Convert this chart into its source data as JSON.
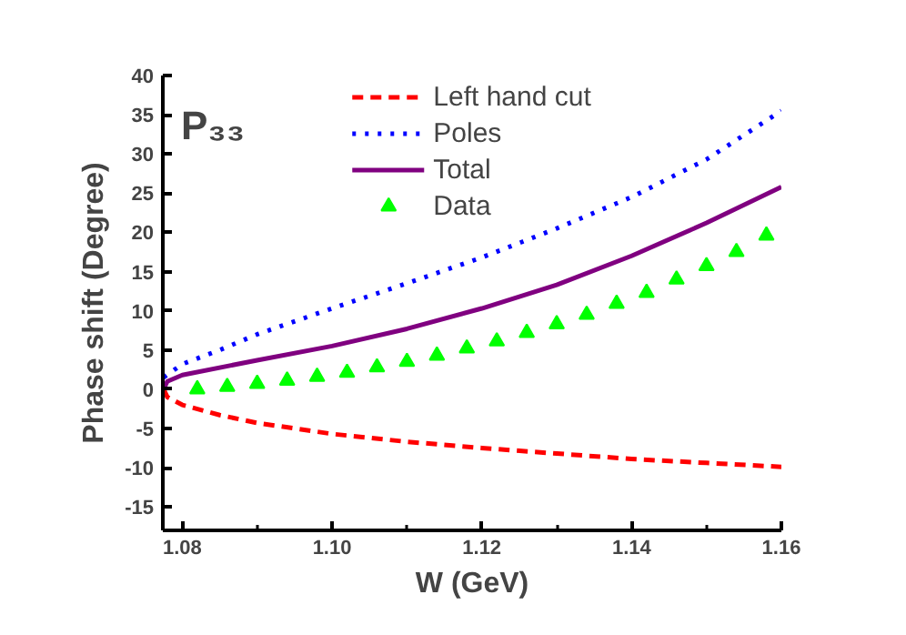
{
  "chart_data": {
    "type": "line",
    "title": "P₃₃",
    "xlabel": "W (GeV)",
    "ylabel": "Phase shift (Degree)",
    "xlim": [
      1.0774,
      1.16
    ],
    "ylim": [
      -18,
      40
    ],
    "xticks": [
      1.08,
      {
        "value": 1.09,
        "label": null
      },
      {
        "value": 1.1,
        "label": "1.10"
      },
      {
        "value": 1.11,
        "label": null
      },
      1.12,
      {
        "value": 1.13,
        "label": null
      },
      1.14,
      {
        "value": 1.15,
        "label": null
      },
      1.16
    ],
    "yticks": [
      -15,
      -10,
      -5,
      0,
      5,
      10,
      15,
      20,
      25,
      30,
      35,
      40
    ],
    "grid": false,
    "legend": "top",
    "series": [
      {
        "name": "Left hand cut",
        "line_style": "dashed",
        "color": "#ff0000",
        "x": [
          1.0775,
          1.078,
          1.08,
          1.085,
          1.09,
          1.1,
          1.11,
          1.12,
          1.13,
          1.14,
          1.15,
          1.16
        ],
        "values": [
          0,
          -1,
          -2,
          -3.3,
          -4.3,
          -5.7,
          -6.7,
          -7.5,
          -8.2,
          -8.9,
          -9.4,
          -9.9
        ]
      },
      {
        "name": "Poles",
        "line_style": "dotted",
        "color": "#0000ff",
        "x": [
          1.0775,
          1.08,
          1.085,
          1.09,
          1.1,
          1.11,
          1.12,
          1.13,
          1.14,
          1.15,
          1.16
        ],
        "values": [
          1.5,
          3.2,
          5,
          7,
          10.3,
          13.5,
          16.8,
          20.5,
          24.5,
          29.3,
          35.5
        ]
      },
      {
        "name": "Total",
        "line_style": "solid",
        "color": "#800080",
        "x": [
          1.0775,
          1.078,
          1.08,
          1.09,
          1.1,
          1.11,
          1.12,
          1.13,
          1.14,
          1.15,
          1.16
        ],
        "values": [
          0,
          1,
          1.8,
          3.7,
          5.5,
          7.7,
          10.3,
          13.3,
          17,
          21.2,
          25.8
        ]
      },
      {
        "name": "Data",
        "type": "scatter",
        "marker": "triangle",
        "color": "#00ff00",
        "x": [
          1.082,
          1.086,
          1.09,
          1.094,
          1.098,
          1.102,
          1.106,
          1.11,
          1.114,
          1.118,
          1.122,
          1.126,
          1.13,
          1.134,
          1.138,
          1.142,
          1.146,
          1.15,
          1.154,
          1.158
        ],
        "values": [
          0,
          0.3,
          0.7,
          1.1,
          1.6,
          2.1,
          2.8,
          3.5,
          4.3,
          5.2,
          6.1,
          7.2,
          8.3,
          9.5,
          10.9,
          12.3,
          14.0,
          15.7,
          17.5,
          19.6
        ]
      }
    ]
  }
}
